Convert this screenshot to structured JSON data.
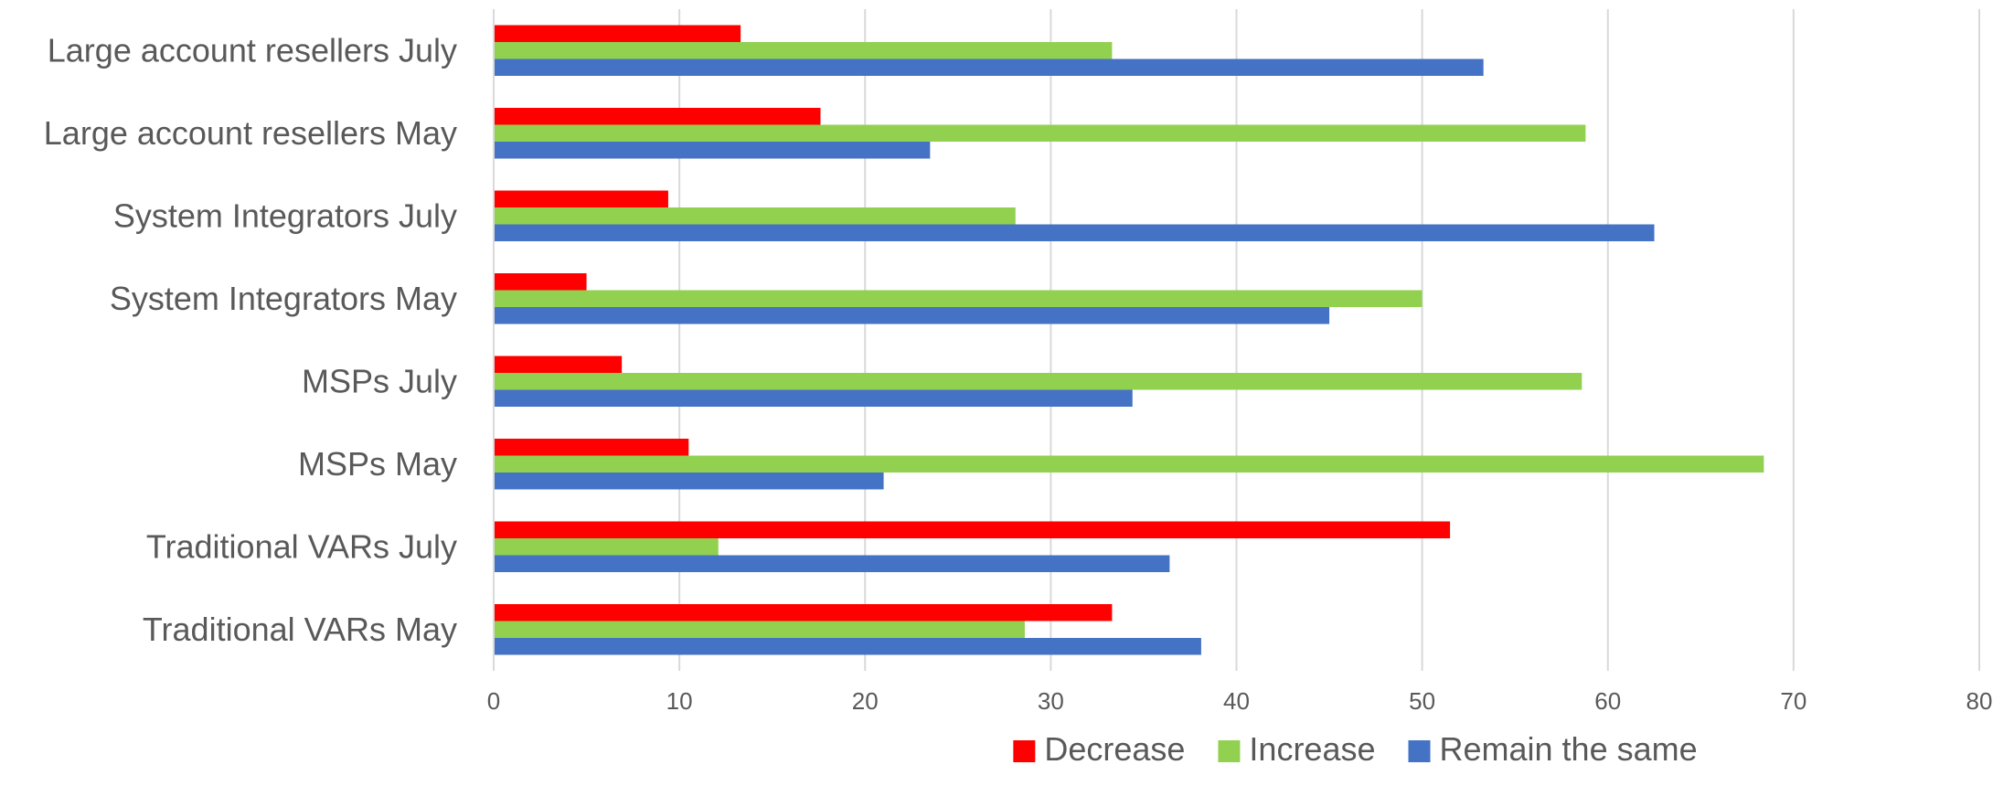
{
  "chart_data": {
    "type": "bar",
    "orientation": "horizontal",
    "categories": [
      "Traditional VARs May",
      "Traditional VARs July",
      "MSPs May",
      "MSPs July",
      "System Integrators May",
      "System Integrators July",
      "Large account resellers May",
      "Large account resellers July"
    ],
    "series": [
      {
        "name": "Decrease",
        "color": "#FF0000",
        "values": [
          33.3,
          51.5,
          10.5,
          6.9,
          5.0,
          9.4,
          17.6,
          13.3
        ]
      },
      {
        "name": "Increase",
        "color": "#92D050",
        "values": [
          28.6,
          12.1,
          68.4,
          58.6,
          50.0,
          28.1,
          58.8,
          33.3
        ]
      },
      {
        "name": "Remain the same",
        "color": "#4472C4",
        "values": [
          38.1,
          36.4,
          21.0,
          34.4,
          45.0,
          62.5,
          23.5,
          53.3
        ]
      }
    ],
    "title": "",
    "xlabel": "",
    "ylabel": "",
    "xlim": [
      0,
      80
    ],
    "xticks": [
      "0",
      "10",
      "20",
      "30",
      "40",
      "50",
      "60",
      "70",
      "80"
    ],
    "grid": true,
    "legend_position": "bottom"
  }
}
